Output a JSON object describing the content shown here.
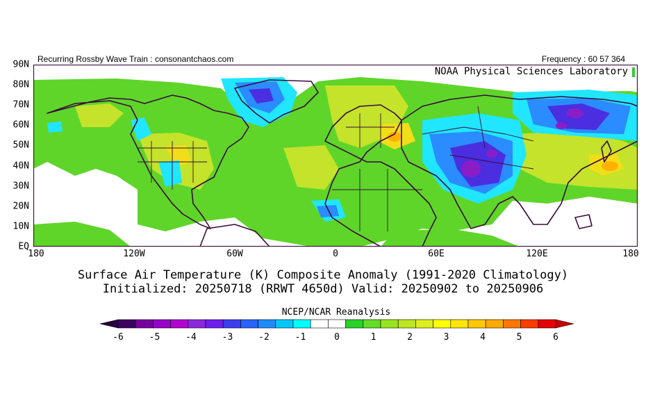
{
  "header": {
    "left": "Recurring Rossby Wave Train : consonantchaos.com",
    "right": "Frequency : 60 57 364"
  },
  "map": {
    "corner_label": "NOAA Physical Sciences Laboratory",
    "lat_labels": [
      "90N",
      "80N",
      "70N",
      "60N",
      "50N",
      "40N",
      "30N",
      "20N",
      "10N",
      "EQ"
    ],
    "lon_labels": [
      "180",
      "120W",
      "60W",
      "0",
      "60E",
      "120E",
      "180"
    ]
  },
  "titles": {
    "line1": "Surface Air Temperature (K) Composite Anomaly (1991-2020 Climatology)",
    "line2": "Initialized: 20250718 (RRWT 4650d) Valid: 20250902 to 20250906"
  },
  "colorbar": {
    "title": "NCEP/NCAR Reanalysis",
    "tick_labels": [
      "-6",
      "-5",
      "-4",
      "-3",
      "-2",
      "-1",
      "0",
      "1",
      "2",
      "3",
      "4",
      "5",
      "6"
    ],
    "colors": [
      "#3c0060",
      "#7800a0",
      "#9600c8",
      "#b400d2",
      "#8c28dc",
      "#6e1ef0",
      "#3c3cf0",
      "#2864ff",
      "#1e8cff",
      "#00c8ff",
      "#00ffff",
      "#ffffff",
      "#ffffff",
      "#28d228",
      "#64dc28",
      "#96e61e",
      "#bee61e",
      "#dcf01e",
      "#ffff00",
      "#ffe600",
      "#ffc800",
      "#ffaa00",
      "#ff7800",
      "#ff3c00",
      "#e60000"
    ],
    "under_color": "#280040",
    "over_color": "#c80000"
  },
  "palette": {
    "coast": "#3a0a3a",
    "warm_light": "#60d828",
    "warm_mid": "#c8e628",
    "warm_high": "#f0dc10",
    "warm_peak": "#ffa800",
    "cool_light": "#1ee6ff",
    "cool_mid": "#1e8cff",
    "cool_deep": "#3c28dc",
    "cool_peak": "#8c1ec8"
  }
}
